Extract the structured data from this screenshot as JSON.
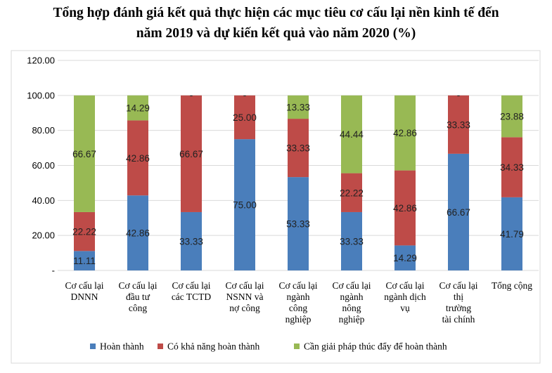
{
  "title_line1": "Tổng hợp đánh giá kết quả thực hiện các mục tiêu cơ cấu lại nền kinh tế đến",
  "title_line2": "năm 2019 và dự kiến kết quả vào năm 2020 (%)",
  "colors": {
    "Hoàn thành": "#4A7EBB",
    "Có khả năng hoàn thành": "#BE4B48",
    "Cần giải pháp thúc đẩy để hoàn thành": "#98B954"
  },
  "chart_data": {
    "type": "bar",
    "stacked": true,
    "title": "Tổng hợp đánh giá kết quả thực hiện các mục tiêu cơ cấu lại nền kinh tế đến năm 2019 và dự kiến kết quả vào năm 2020 (%)",
    "categories": [
      [
        "Cơ cấu lại",
        "DNNN"
      ],
      [
        "Cơ cấu lại",
        "đầu tư",
        "công"
      ],
      [
        "Cơ cấu lại",
        "các TCTD"
      ],
      [
        "Cơ cấu lại",
        "NSNN và",
        "nợ công"
      ],
      [
        "Cơ cấu lại",
        "ngành",
        "công",
        "nghiệp"
      ],
      [
        "Cơ cấu lại",
        "ngành",
        "nông",
        "nghiệp"
      ],
      [
        "Cơ cấu lại",
        "ngành dịch",
        "vụ"
      ],
      [
        "Cơ cấu lại",
        "thị",
        "trường",
        "tài chính"
      ],
      [
        "Tổng cộng"
      ]
    ],
    "series": [
      {
        "name": "Hoàn thành",
        "values": [
          11.11,
          42.86,
          33.33,
          75.0,
          53.33,
          33.33,
          14.29,
          66.67,
          41.79
        ]
      },
      {
        "name": "Có khả năng hoàn thành",
        "values": [
          22.22,
          42.86,
          66.67,
          25.0,
          33.33,
          22.22,
          42.86,
          33.33,
          34.33
        ]
      },
      {
        "name": "Cần giải pháp thúc đẩy để hoàn thành",
        "values": [
          66.67,
          14.29,
          0,
          0,
          13.33,
          44.44,
          42.86,
          0,
          23.88
        ]
      }
    ],
    "data_labels": [
      [
        "11.11",
        "42.86",
        "33.33",
        "75.00",
        "53.33",
        "33.33",
        "14.29",
        "66.67",
        "41.79"
      ],
      [
        "22.22",
        "42.86",
        "66.67",
        "25.00",
        "33.33",
        "22.22",
        "42.86",
        "33.33",
        "34.33"
      ],
      [
        "66.67",
        "14.29",
        "-",
        "-",
        "13.33",
        "44.44",
        "42.86",
        "-",
        "23.88"
      ]
    ],
    "ylim": [
      0,
      120
    ],
    "yticks": [
      0,
      20,
      40,
      60,
      80,
      100,
      120
    ],
    "ytick_labels": [
      "-",
      "20.00",
      "40.00",
      "60.00",
      "80.00",
      "100.00",
      "120.00"
    ],
    "grid": true,
    "legend": "bottom"
  }
}
